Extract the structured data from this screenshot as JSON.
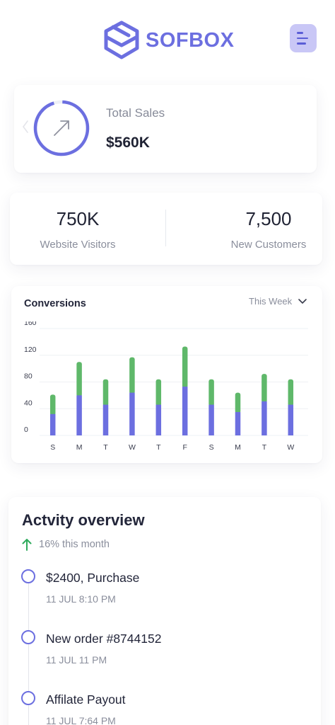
{
  "header": {
    "brand": "SOFBOX"
  },
  "colors": {
    "accent": "#6c6fe0",
    "bar_bottom": "#6c6fe0",
    "bar_top": "#5fb86a",
    "up_arrow": "#2eaa5c"
  },
  "sales": {
    "label": "Total Sales",
    "value": "$560K",
    "icon": "arrow-up-right-icon"
  },
  "stats": [
    {
      "value": "750K",
      "label": "Website Visitors"
    },
    {
      "value": "7,500",
      "label": "New Customers"
    }
  ],
  "chart": {
    "title": "Conversions",
    "period": "This Week"
  },
  "chart_data": {
    "type": "bar",
    "stacked": true,
    "categories": [
      "S",
      "M",
      "T",
      "W",
      "T",
      "F",
      "S",
      "M",
      "T",
      "W"
    ],
    "series": [
      {
        "values": [
          32,
          60,
          46,
          64,
          46,
          73,
          46,
          35,
          51,
          46
        ]
      },
      {
        "values": [
          29,
          50,
          38,
          53,
          38,
          60,
          38,
          29,
          41,
          38
        ]
      }
    ],
    "yticks": [
      "0",
      "40",
      "80",
      "120",
      "160"
    ],
    "ylim": [
      0,
      160
    ],
    "grid": true
  },
  "activity": {
    "title": "Actvity overview",
    "trend": "16% this month",
    "items": [
      {
        "text": "$2400, Purchase",
        "time": "11 JUL 8:10 PM"
      },
      {
        "text": "New order #8744152",
        "time": "11 JUL 11 PM"
      },
      {
        "text": "Affilate Payout",
        "time": "11 JUL 7:64 PM"
      }
    ]
  }
}
